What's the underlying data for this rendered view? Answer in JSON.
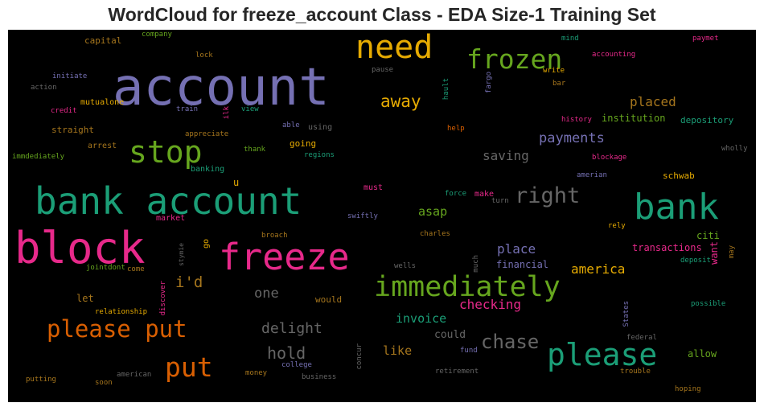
{
  "title": "WordCloud for freeze_account Class - EDA Size-1 Training Set",
  "chart_data": {
    "type": "wordcloud",
    "title": "WordCloud for freeze_account Class - EDA Size-1 Training Set",
    "background": "#000000",
    "words": [
      {
        "text": "account",
        "color": "#7570b3"
      },
      {
        "text": "need",
        "color": "#e6ab02"
      },
      {
        "text": "frozen",
        "color": "#66a61e"
      },
      {
        "text": "stop",
        "color": "#66a61e"
      },
      {
        "text": "bank account",
        "color": "#1b9e77"
      },
      {
        "text": "block",
        "color": "#e7298a"
      },
      {
        "text": "freeze",
        "color": "#e7298a"
      },
      {
        "text": "bank",
        "color": "#1b9e77"
      },
      {
        "text": "immediately",
        "color": "#66a61e"
      },
      {
        "text": "please",
        "color": "#1b9e77"
      },
      {
        "text": "please put",
        "color": "#d95f02"
      },
      {
        "text": "put",
        "color": "#d95f02"
      },
      {
        "text": "right",
        "color": "#666666"
      },
      {
        "text": "away",
        "color": "#e6ab02"
      },
      {
        "text": "chase",
        "color": "#666666"
      },
      {
        "text": "hold",
        "color": "#666666"
      },
      {
        "text": "delight",
        "color": "#666666"
      },
      {
        "text": "payments",
        "color": "#7570b3"
      },
      {
        "text": "placed",
        "color": "#a6761d"
      },
      {
        "text": "checking",
        "color": "#e7298a"
      },
      {
        "text": "place",
        "color": "#7570b3"
      },
      {
        "text": "i'd",
        "color": "#a6761d"
      },
      {
        "text": "america",
        "color": "#e6ab02"
      },
      {
        "text": "one",
        "color": "#666666"
      },
      {
        "text": "saving",
        "color": "#666666"
      },
      {
        "text": "asap",
        "color": "#66a61e"
      },
      {
        "text": "invoice",
        "color": "#1b9e77"
      },
      {
        "text": "like",
        "color": "#a6761d"
      },
      {
        "text": "institution",
        "color": "#66a61e"
      },
      {
        "text": "depository",
        "color": "#1b9e77"
      },
      {
        "text": "citi",
        "color": "#66a61e"
      },
      {
        "text": "transactions",
        "color": "#e7298a"
      },
      {
        "text": "allow",
        "color": "#66a61e"
      },
      {
        "text": "could",
        "color": "#666666"
      },
      {
        "text": "financial",
        "color": "#7570b3"
      },
      {
        "text": "want",
        "color": "#e7298a"
      },
      {
        "text": "schwab",
        "color": "#e6ab02"
      },
      {
        "text": "capital",
        "color": "#a6761d"
      },
      {
        "text": "company",
        "color": "#66a61e"
      },
      {
        "text": "lock",
        "color": "#a6761d"
      },
      {
        "text": "initiate",
        "color": "#7570b3"
      },
      {
        "text": "action",
        "color": "#666666"
      },
      {
        "text": "credit",
        "color": "#e7298a"
      },
      {
        "text": "mutualone",
        "color": "#e6ab02"
      },
      {
        "text": "train",
        "color": "#7570b3"
      },
      {
        "text": "ilk",
        "color": "#e7298a"
      },
      {
        "text": "view",
        "color": "#1b9e77"
      },
      {
        "text": "straight",
        "color": "#a6761d"
      },
      {
        "text": "appreciate",
        "color": "#a6761d"
      },
      {
        "text": "able",
        "color": "#7570b3"
      },
      {
        "text": "using",
        "color": "#666666"
      },
      {
        "text": "immdediately",
        "color": "#66a61e"
      },
      {
        "text": "arrest",
        "color": "#a6761d"
      },
      {
        "text": "thank",
        "color": "#66a61e"
      },
      {
        "text": "going",
        "color": "#e6ab02"
      },
      {
        "text": "regions",
        "color": "#1b9e77"
      },
      {
        "text": "banking",
        "color": "#1b9e77"
      },
      {
        "text": "u",
        "color": "#e6ab02"
      },
      {
        "text": "market",
        "color": "#e7298a"
      },
      {
        "text": "must",
        "color": "#e7298a"
      },
      {
        "text": "force",
        "color": "#1b9e77"
      },
      {
        "text": "make",
        "color": "#e7298a"
      },
      {
        "text": "turn",
        "color": "#666666"
      },
      {
        "text": "swiftly",
        "color": "#7570b3"
      },
      {
        "text": "charles",
        "color": "#a6761d"
      },
      {
        "text": "go",
        "color": "#e6ab02"
      },
      {
        "text": "stymie",
        "color": "#666666"
      },
      {
        "text": "broach",
        "color": "#a6761d"
      },
      {
        "text": "jointdont",
        "color": "#66a61e"
      },
      {
        "text": "come",
        "color": "#a6761d"
      },
      {
        "text": "wells",
        "color": "#666666"
      },
      {
        "text": "much",
        "color": "#666666"
      },
      {
        "text": "let",
        "color": "#a6761d"
      },
      {
        "text": "discover",
        "color": "#e7298a"
      },
      {
        "text": "would",
        "color": "#a6761d"
      },
      {
        "text": "relationship",
        "color": "#e6ab02"
      },
      {
        "text": "college",
        "color": "#7570b3"
      },
      {
        "text": "concur",
        "color": "#666666"
      },
      {
        "text": "fund",
        "color": "#7570b3"
      },
      {
        "text": "retirement",
        "color": "#666666"
      },
      {
        "text": "putting",
        "color": "#a6761d"
      },
      {
        "text": "soon",
        "color": "#a6761d"
      },
      {
        "text": "american",
        "color": "#666666"
      },
      {
        "text": "money",
        "color": "#a6761d"
      },
      {
        "text": "business",
        "color": "#666666"
      },
      {
        "text": "pause",
        "color": "#666666"
      },
      {
        "text": "fargo",
        "color": "#7570b3"
      },
      {
        "text": "hault",
        "color": "#1b9e77"
      },
      {
        "text": "mind",
        "color": "#1b9e77"
      },
      {
        "text": "accounting",
        "color": "#e7298a"
      },
      {
        "text": "write",
        "color": "#e6ab02"
      },
      {
        "text": "bar",
        "color": "#a6761d"
      },
      {
        "text": "paymet",
        "color": "#e7298a"
      },
      {
        "text": "history",
        "color": "#e7298a"
      },
      {
        "text": "help",
        "color": "#d95f02"
      },
      {
        "text": "blockage",
        "color": "#e7298a"
      },
      {
        "text": "amerian",
        "color": "#7570b3"
      },
      {
        "text": "wholly",
        "color": "#666666"
      },
      {
        "text": "rely",
        "color": "#e6ab02"
      },
      {
        "text": "deposit",
        "color": "#1b9e77"
      },
      {
        "text": "may",
        "color": "#a6761d"
      },
      {
        "text": "possible",
        "color": "#1b9e77"
      },
      {
        "text": "States",
        "color": "#7570b3"
      },
      {
        "text": "federal",
        "color": "#666666"
      },
      {
        "text": "trouble",
        "color": "#a6761d"
      },
      {
        "text": "hoping",
        "color": "#a6761d"
      }
    ]
  }
}
